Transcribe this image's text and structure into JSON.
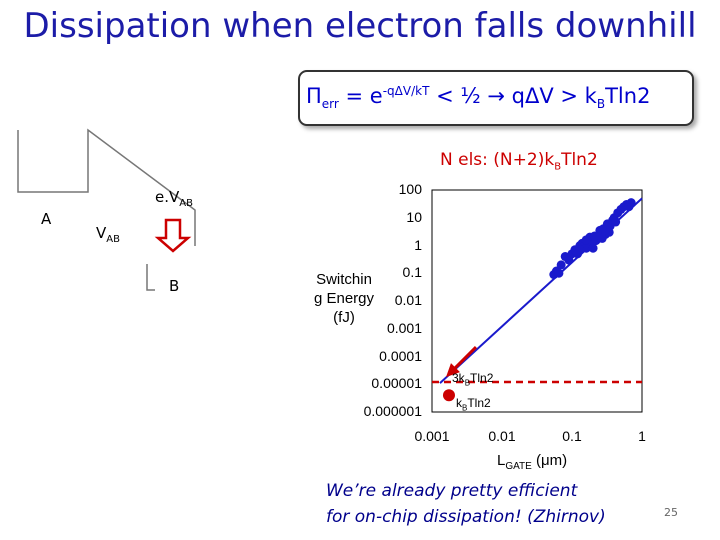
{
  "slide": {
    "title": "Dissipation when electron falls downhill",
    "formula": {
      "pi": "Π",
      "sub_err": "err",
      "eq": " = e",
      "exp": "-qΔV/kT",
      "rest1": " < ½ ",
      "arrow": "→",
      "rest2": " qΔV > k",
      "sub_b": "B",
      "rest3": "Tln2"
    },
    "n_els": {
      "pre": "N els: (N+2)k",
      "sub": "B",
      "post": "Tln2"
    },
    "diagram": {
      "label_a": "A",
      "label_b": "B",
      "vab_main": "V",
      "vab_sub": "AB",
      "evab_main": "e.V",
      "evab_sub": "AB",
      "arrow_color": "#cc0000"
    },
    "caption_line1": "We’re already pretty efficient",
    "caption_line2": "for on-chip dissipation! (Zhirnov)",
    "page_number": "25"
  },
  "chart_data": {
    "type": "scatter",
    "y_scale": "log",
    "x_scale": "log",
    "xlim": [
      0.001,
      1
    ],
    "ylim": [
      1e-06,
      100
    ],
    "x_ticks": [
      "0.001",
      "0.01",
      "0.1",
      "1"
    ],
    "y_ticks": [
      "100",
      "10",
      "1",
      "0.1",
      "0.01",
      "0.001",
      "0.0001",
      "0.00001",
      "0.000001"
    ],
    "ylabel": "Switching Energy (fJ)",
    "ylabel_lines": [
      "Switchin",
      "g Energy",
      "(fJ)"
    ],
    "xlabel_main": "L",
    "xlabel_sub": "GATE",
    "xlabel_unit": " (μm)",
    "points_color": "#1a1acc",
    "line_color": "#1a1acc",
    "ref_line_color": "#cc0000",
    "trend_line": [
      [
        0.0013,
        1.1e-05
      ],
      [
        1,
        50
      ]
    ],
    "ref_lines": [
      {
        "label_pre": "3k",
        "label_sub": "B",
        "label_post": "Tln2",
        "value": 1.2e-05
      }
    ],
    "marker_label": {
      "pre": "k",
      "sub": "B",
      "post": "Tln2",
      "x": 0.0013,
      "y": 4e-06
    },
    "points": [
      [
        0.055,
        0.09
      ],
      [
        0.06,
        0.12
      ],
      [
        0.065,
        0.1
      ],
      [
        0.07,
        0.2
      ],
      [
        0.08,
        0.4
      ],
      [
        0.09,
        0.3
      ],
      [
        0.1,
        0.5
      ],
      [
        0.11,
        0.7
      ],
      [
        0.12,
        0.5
      ],
      [
        0.13,
        1.0
      ],
      [
        0.14,
        1.2
      ],
      [
        0.15,
        1.0
      ],
      [
        0.16,
        0.8
      ],
      [
        0.17,
        1.5
      ],
      [
        0.18,
        2.0
      ],
      [
        0.19,
        1.1
      ],
      [
        0.2,
        0.8
      ],
      [
        0.22,
        1.5
      ],
      [
        0.24,
        2.0
      ],
      [
        0.25,
        3.5
      ],
      [
        0.28,
        4.0
      ],
      [
        0.3,
        2.5
      ],
      [
        0.32,
        6.0
      ],
      [
        0.35,
        5.0
      ],
      [
        0.38,
        8.0
      ],
      [
        0.4,
        10
      ],
      [
        0.45,
        15
      ],
      [
        0.5,
        20
      ],
      [
        0.55,
        25
      ],
      [
        0.6,
        30
      ],
      [
        0.65,
        25
      ],
      [
        0.7,
        35
      ],
      [
        0.13,
        0.7
      ],
      [
        0.16,
        1.6
      ],
      [
        0.21,
        2.2
      ],
      [
        0.27,
        1.8
      ],
      [
        0.34,
        3.0
      ],
      [
        0.42,
        7.0
      ]
    ]
  }
}
